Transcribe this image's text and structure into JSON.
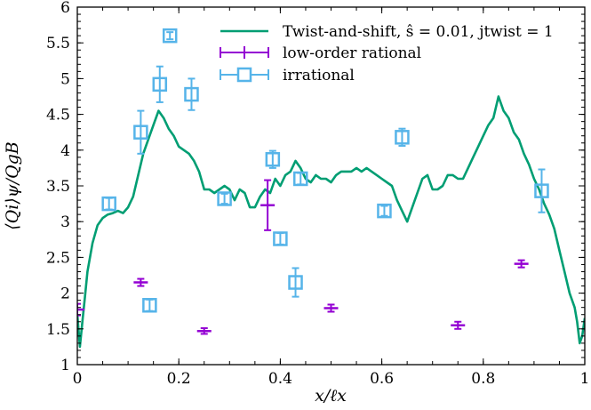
{
  "chart_data": {
    "type": "scatter",
    "xlabel": "x/ℓx",
    "ylabel": "⟨Qi⟩ψ/QgB",
    "xlim": [
      0,
      1
    ],
    "ylim": [
      1,
      6
    ],
    "x_ticks": [
      "0",
      "0.2",
      "0.4",
      "0.6",
      "0.8",
      "1"
    ],
    "y_ticks": [
      "1",
      "1.5",
      "2",
      "2.5",
      "3",
      "3.5",
      "4",
      "4.5",
      "5",
      "5.5",
      "6"
    ],
    "legend_position": "top-right",
    "grid": false,
    "series": [
      {
        "name": "Twist-and-shift, ŝ = 0.01, jtwist = 1",
        "kind": "line",
        "color": "#009E73",
        "x": [
          0.0,
          0.005,
          0.01,
          0.015,
          0.02,
          0.03,
          0.04,
          0.05,
          0.06,
          0.07,
          0.08,
          0.09,
          0.1,
          0.11,
          0.12,
          0.13,
          0.14,
          0.15,
          0.16,
          0.17,
          0.18,
          0.19,
          0.2,
          0.21,
          0.22,
          0.23,
          0.24,
          0.25,
          0.26,
          0.27,
          0.28,
          0.29,
          0.3,
          0.31,
          0.32,
          0.33,
          0.34,
          0.35,
          0.36,
          0.37,
          0.38,
          0.39,
          0.4,
          0.41,
          0.42,
          0.43,
          0.44,
          0.45,
          0.46,
          0.47,
          0.48,
          0.49,
          0.5,
          0.51,
          0.52,
          0.53,
          0.54,
          0.55,
          0.56,
          0.57,
          0.58,
          0.59,
          0.6,
          0.61,
          0.62,
          0.63,
          0.64,
          0.65,
          0.66,
          0.67,
          0.68,
          0.69,
          0.7,
          0.71,
          0.72,
          0.73,
          0.74,
          0.75,
          0.76,
          0.77,
          0.78,
          0.79,
          0.8,
          0.81,
          0.82,
          0.83,
          0.84,
          0.85,
          0.86,
          0.87,
          0.88,
          0.89,
          0.9,
          0.91,
          0.92,
          0.93,
          0.94,
          0.95,
          0.96,
          0.97,
          0.98,
          0.985,
          0.99,
          0.995,
          1.0
        ],
        "y": [
          1.7,
          1.25,
          1.6,
          1.95,
          2.3,
          2.7,
          2.95,
          3.05,
          3.1,
          3.12,
          3.15,
          3.12,
          3.2,
          3.35,
          3.65,
          3.95,
          4.15,
          4.35,
          4.55,
          4.45,
          4.3,
          4.2,
          4.05,
          4.0,
          3.95,
          3.85,
          3.7,
          3.45,
          3.45,
          3.4,
          3.45,
          3.5,
          3.45,
          3.3,
          3.45,
          3.4,
          3.2,
          3.2,
          3.35,
          3.45,
          3.4,
          3.6,
          3.5,
          3.65,
          3.7,
          3.85,
          3.75,
          3.6,
          3.55,
          3.65,
          3.6,
          3.6,
          3.55,
          3.65,
          3.7,
          3.7,
          3.7,
          3.75,
          3.7,
          3.75,
          3.7,
          3.65,
          3.6,
          3.55,
          3.5,
          3.3,
          3.15,
          3.0,
          3.2,
          3.4,
          3.6,
          3.65,
          3.45,
          3.45,
          3.5,
          3.65,
          3.65,
          3.6,
          3.6,
          3.75,
          3.9,
          4.05,
          4.2,
          4.35,
          4.45,
          4.75,
          4.55,
          4.45,
          4.25,
          4.15,
          3.95,
          3.8,
          3.6,
          3.45,
          3.25,
          3.1,
          2.9,
          2.6,
          2.3,
          2.0,
          1.8,
          1.6,
          1.3,
          1.4,
          1.65
        ]
      },
      {
        "name": "low-order rational",
        "kind": "errorbar",
        "marker": "none",
        "color": "#9400D3",
        "x": [
          0.0,
          0.125,
          0.25,
          0.375,
          0.5,
          0.75,
          0.875
        ],
        "y": [
          1.77,
          2.15,
          1.47,
          3.23,
          1.79,
          1.55,
          2.41
        ],
        "err": [
          0.08,
          0.05,
          0.04,
          0.35,
          0.05,
          0.05,
          0.05
        ]
      },
      {
        "name": "irrational",
        "kind": "errorbar",
        "marker": "square",
        "color": "#56B4E9",
        "x": [
          0.0625,
          0.125,
          0.1425,
          0.1625,
          0.1825,
          0.225,
          0.29,
          0.385,
          0.4,
          0.43,
          0.44,
          0.605,
          0.64,
          0.915
        ],
        "y": [
          3.25,
          4.25,
          1.83,
          4.92,
          5.6,
          4.78,
          3.32,
          3.87,
          2.76,
          2.15,
          3.6,
          3.15,
          4.18,
          3.43
        ],
        "err": [
          0.08,
          0.3,
          0.08,
          0.25,
          0.05,
          0.22,
          0.07,
          0.12,
          0.08,
          0.2,
          0.08,
          0.07,
          0.12,
          0.3
        ]
      }
    ]
  }
}
